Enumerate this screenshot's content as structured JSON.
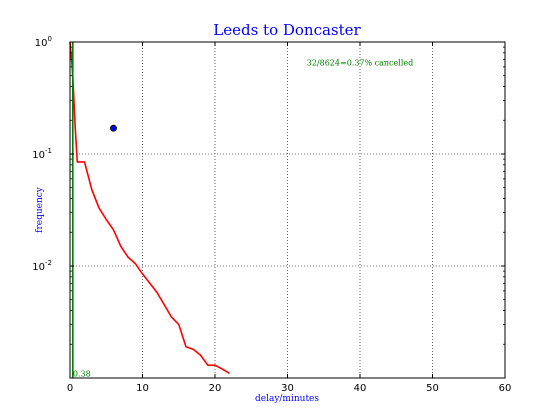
{
  "chart_data": {
    "type": "line",
    "title": "Leeds to Doncaster",
    "xlabel": "delay/minutes",
    "ylabel": "frequency",
    "xlim": [
      0,
      60
    ],
    "ylim": [
      0.001,
      1.0
    ],
    "yscale": "log",
    "grid": true,
    "x_ticks": [
      0,
      10,
      20,
      30,
      40,
      50,
      60
    ],
    "x_tick_labels": [
      "0",
      "10",
      "20",
      "30",
      "40",
      "50",
      "60"
    ],
    "y_ticks": [
      {
        "value": 1.0,
        "base": "10",
        "exp": "0"
      },
      {
        "value": 0.1,
        "base": "10",
        "exp": "-1"
      },
      {
        "value": 0.01,
        "base": "10",
        "exp": "-2"
      }
    ],
    "annotations": [
      {
        "text": "32/8624=0.37% cancelled",
        "x": 40,
        "y": 0.62,
        "color": "#008000"
      },
      {
        "text": "0.38",
        "x": 0.4,
        "y": 0.00103,
        "color": "#008000"
      }
    ],
    "series": [
      {
        "color": "#ff0000",
        "x": [
          0,
          0.3,
          0.5,
          0.7,
          1,
          2,
          3,
          4,
          5,
          6,
          7,
          8,
          9,
          10,
          11,
          12,
          13,
          14,
          15,
          16,
          17,
          18,
          19,
          20,
          21,
          22
        ],
        "y": [
          1.0,
          0.6,
          0.35,
          0.18,
          0.085,
          0.085,
          0.048,
          0.033,
          0.026,
          0.021,
          0.015,
          0.012,
          0.0105,
          0.0085,
          0.007,
          0.0058,
          0.0045,
          0.0035,
          0.003,
          0.0019,
          0.0018,
          0.0016,
          0.0013,
          0.0013,
          0.0012,
          0.0011
        ]
      },
      {
        "color": "#008000",
        "x": [
          0.38,
          0.38
        ],
        "y": [
          1.0,
          0.001
        ]
      }
    ],
    "points": [
      {
        "x": 6,
        "y": 0.17,
        "color": "#0000ff"
      }
    ]
  }
}
